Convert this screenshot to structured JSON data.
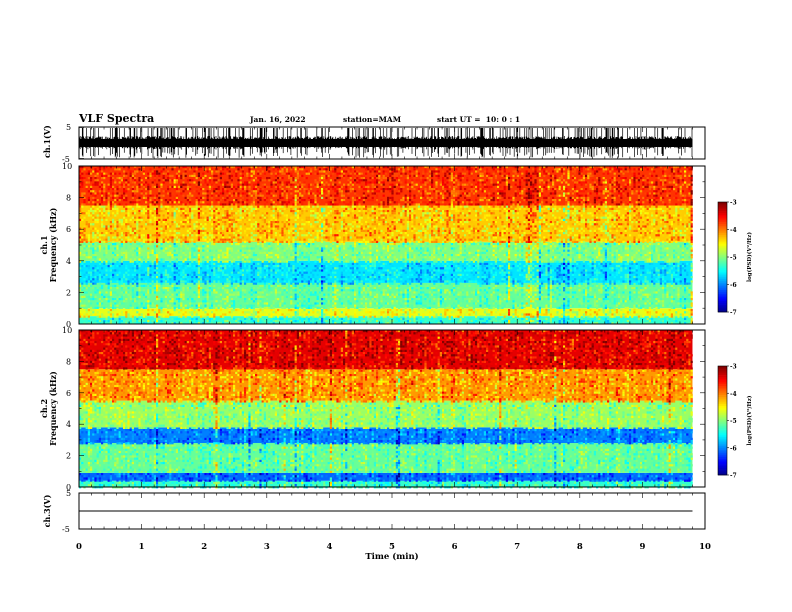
{
  "header": {
    "title": "VLF Spectra",
    "date": "Jan. 16, 2022",
    "station": "station=MAM",
    "start": "start UT =  10: 0 : 1"
  },
  "chart_data": [
    {
      "type": "line",
      "panel": "ch1-waveform",
      "ylabel": "ch.1(V)",
      "yticks": [
        "5",
        "-5"
      ],
      "ylim": [
        -5,
        5
      ],
      "xlim": [
        0,
        10
      ],
      "data_end_min": 9.8,
      "description_of_values": "dense noisy waveform"
    },
    {
      "type": "heatmap",
      "panel": "ch1-spectrogram",
      "ylabel": "ch.1\nFrequency (kHz)",
      "ylabel_line1": "ch.1",
      "ylabel_line2": "Frequency (kHz)",
      "yticks": [
        "0",
        "2",
        "4",
        "6",
        "8",
        "10"
      ],
      "ylim": [
        0,
        10
      ],
      "xlim": [
        0,
        10
      ],
      "data_end_min": 9.8,
      "colorbar": {
        "label": "log(PSD)(V²/Hz)",
        "ticks": [
          "-3",
          "-4",
          "-5",
          "-6",
          "-7"
        ],
        "range": [
          -7,
          -3
        ]
      },
      "bands": [
        {
          "fmin": 0.0,
          "fmax": 0.5,
          "level": -5.3
        },
        {
          "fmin": 0.5,
          "fmax": 1.0,
          "level": -4.6
        },
        {
          "fmin": 1.0,
          "fmax": 2.6,
          "level": -5.1
        },
        {
          "fmin": 2.6,
          "fmax": 4.0,
          "level": -5.6
        },
        {
          "fmin": 4.0,
          "fmax": 5.2,
          "level": -5.0
        },
        {
          "fmin": 5.2,
          "fmax": 7.5,
          "level": -4.3
        },
        {
          "fmin": 7.5,
          "fmax": 10.0,
          "level": -3.7
        }
      ]
    },
    {
      "type": "heatmap",
      "panel": "ch2-spectrogram",
      "ylabel_line1": "ch.2",
      "ylabel_line2": "Frequency (kHz)",
      "yticks": [
        "0",
        "2",
        "4",
        "6",
        "8",
        "10"
      ],
      "ylim": [
        0,
        10
      ],
      "xlim": [
        0,
        10
      ],
      "data_end_min": 9.8,
      "colorbar": {
        "label": "log(PSD)(V²/Hz)",
        "ticks": [
          "-3",
          "-4",
          "-5",
          "-6",
          "-7"
        ],
        "range": [
          -7,
          -3
        ]
      },
      "bands": [
        {
          "fmin": 0.0,
          "fmax": 0.4,
          "level": -5.3
        },
        {
          "fmin": 0.4,
          "fmax": 0.9,
          "level": -6.1
        },
        {
          "fmin": 0.9,
          "fmax": 2.8,
          "level": -5.1
        },
        {
          "fmin": 2.8,
          "fmax": 3.8,
          "level": -6.0
        },
        {
          "fmin": 3.8,
          "fmax": 5.5,
          "level": -4.9
        },
        {
          "fmin": 5.5,
          "fmax": 7.5,
          "level": -4.1
        },
        {
          "fmin": 7.5,
          "fmax": 10.0,
          "level": -3.4
        }
      ]
    },
    {
      "type": "line",
      "panel": "ch3-waveform",
      "ylabel": "ch.3(V)",
      "yticks": [
        "5",
        "-5"
      ],
      "ylim": [
        -5,
        5
      ],
      "xlim": [
        0,
        10
      ],
      "data_end_min": 9.8,
      "constant_value": 0
    }
  ],
  "xaxis": {
    "label": "Time (min)",
    "ticks": [
      "0",
      "1",
      "2",
      "3",
      "4",
      "5",
      "6",
      "7",
      "8",
      "9",
      "10"
    ]
  }
}
